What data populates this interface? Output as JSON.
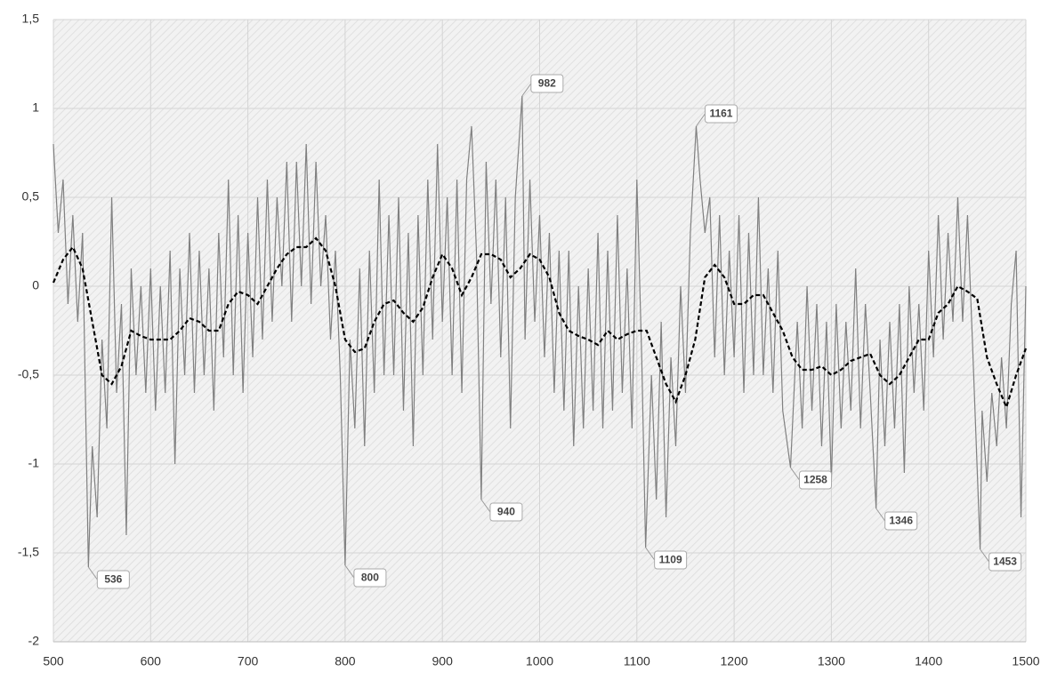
{
  "chart_data": {
    "type": "line",
    "xlim": [
      500,
      1500
    ],
    "xticks": [
      500,
      600,
      700,
      800,
      900,
      1000,
      1100,
      1200,
      1300,
      1400,
      1500
    ],
    "ylim": [
      -2,
      1.5
    ],
    "yticks": [
      -2,
      {
        "value": -1.5,
        "label": "-1,5"
      },
      -1,
      {
        "value": -0.5,
        "label": "-0,5"
      },
      0,
      {
        "value": 0.5,
        "label": "0,5"
      },
      1,
      {
        "value": 1.5,
        "label": "1,5"
      }
    ],
    "grid": true,
    "series": [
      {
        "color": "#808080",
        "style": "solid",
        "x": [
          500,
          505,
          510,
          515,
          520,
          525,
          530,
          536,
          540,
          545,
          550,
          555,
          560,
          565,
          570,
          575,
          580,
          585,
          590,
          595,
          600,
          605,
          610,
          615,
          620,
          625,
          630,
          635,
          640,
          645,
          650,
          655,
          660,
          665,
          670,
          675,
          680,
          685,
          690,
          695,
          700,
          705,
          710,
          715,
          720,
          725,
          730,
          735,
          740,
          745,
          750,
          755,
          760,
          765,
          770,
          775,
          780,
          785,
          790,
          795,
          800,
          805,
          810,
          815,
          820,
          825,
          830,
          835,
          840,
          845,
          850,
          855,
          860,
          865,
          870,
          875,
          880,
          885,
          890,
          895,
          900,
          905,
          910,
          915,
          920,
          925,
          930,
          935,
          940,
          945,
          950,
          955,
          960,
          965,
          970,
          975,
          982,
          985,
          990,
          995,
          1000,
          1005,
          1010,
          1015,
          1020,
          1025,
          1030,
          1035,
          1040,
          1045,
          1050,
          1055,
          1060,
          1065,
          1070,
          1075,
          1080,
          1085,
          1090,
          1095,
          1100,
          1105,
          1109,
          1115,
          1120,
          1125,
          1130,
          1135,
          1140,
          1145,
          1150,
          1155,
          1161,
          1165,
          1170,
          1175,
          1180,
          1185,
          1190,
          1195,
          1200,
          1205,
          1210,
          1215,
          1220,
          1225,
          1230,
          1235,
          1240,
          1245,
          1250,
          1258,
          1265,
          1270,
          1275,
          1280,
          1285,
          1290,
          1295,
          1300,
          1305,
          1310,
          1315,
          1320,
          1325,
          1330,
          1335,
          1340,
          1346,
          1350,
          1355,
          1360,
          1365,
          1370,
          1375,
          1380,
          1385,
          1390,
          1395,
          1400,
          1405,
          1410,
          1415,
          1420,
          1425,
          1430,
          1435,
          1440,
          1445,
          1453,
          1455,
          1460,
          1465,
          1470,
          1475,
          1480,
          1485,
          1490,
          1495,
          1500
        ],
        "values": [
          0.8,
          0.3,
          0.6,
          -0.1,
          0.4,
          -0.2,
          0.3,
          -1.58,
          -0.9,
          -1.3,
          -0.3,
          -0.8,
          0.5,
          -0.6,
          -0.1,
          -1.4,
          0.1,
          -0.5,
          0.0,
          -0.6,
          0.1,
          -0.7,
          0.0,
          -0.6,
          0.2,
          -1.0,
          0.1,
          -0.5,
          0.3,
          -0.6,
          0.2,
          -0.5,
          0.1,
          -0.7,
          0.3,
          -0.4,
          0.6,
          -0.5,
          0.4,
          -0.6,
          0.3,
          -0.4,
          0.5,
          -0.3,
          0.6,
          -0.2,
          0.5,
          0.0,
          0.7,
          -0.2,
          0.7,
          0.0,
          0.8,
          -0.1,
          0.7,
          0.0,
          0.4,
          -0.3,
          0.2,
          -0.5,
          -1.57,
          -0.3,
          -0.8,
          0.1,
          -0.9,
          0.2,
          -0.6,
          0.6,
          -0.5,
          0.4,
          -0.5,
          0.5,
          -0.7,
          0.3,
          -0.9,
          0.4,
          -0.5,
          0.6,
          -0.3,
          0.8,
          -0.2,
          0.5,
          -0.5,
          0.6,
          -0.6,
          0.6,
          0.9,
          0.2,
          -1.2,
          0.7,
          -0.1,
          0.6,
          -0.4,
          0.5,
          -0.8,
          0.5,
          1.07,
          -0.3,
          0.6,
          -0.2,
          0.4,
          -0.4,
          0.3,
          -0.6,
          0.2,
          -0.7,
          0.2,
          -0.9,
          0.0,
          -0.8,
          0.1,
          -0.7,
          0.3,
          -0.8,
          0.2,
          -0.7,
          0.4,
          -0.6,
          0.1,
          -0.8,
          0.6,
          -0.4,
          -1.47,
          -0.5,
          -1.2,
          -0.2,
          -1.3,
          -0.4,
          -0.9,
          0.0,
          -0.6,
          0.3,
          0.9,
          0.6,
          0.3,
          0.5,
          -0.4,
          0.4,
          -0.5,
          0.2,
          -0.4,
          0.4,
          -0.6,
          0.3,
          -0.5,
          0.5,
          -0.5,
          0.1,
          -0.6,
          0.2,
          -0.7,
          -1.02,
          -0.2,
          -0.8,
          0.0,
          -0.7,
          -0.1,
          -0.9,
          -0.2,
          -1.1,
          -0.1,
          -0.8,
          -0.2,
          -0.7,
          0.1,
          -0.8,
          -0.1,
          -0.6,
          -1.25,
          -0.3,
          -0.9,
          -0.2,
          -0.8,
          -0.1,
          -1.05,
          0.0,
          -0.6,
          -0.1,
          -0.7,
          0.2,
          -0.4,
          0.4,
          -0.3,
          0.3,
          -0.2,
          0.5,
          -0.2,
          0.4,
          -0.3,
          -1.48,
          -0.7,
          -1.1,
          -0.6,
          -0.9,
          -0.4,
          -0.8,
          -0.1,
          0.2,
          -1.3,
          0.0
        ]
      },
      {
        "color": "#000000",
        "style": "dashed",
        "x": [
          500,
          510,
          520,
          530,
          540,
          550,
          560,
          570,
          580,
          590,
          600,
          610,
          620,
          630,
          640,
          650,
          660,
          670,
          680,
          690,
          700,
          710,
          720,
          730,
          740,
          750,
          760,
          770,
          780,
          790,
          800,
          810,
          820,
          830,
          840,
          850,
          860,
          870,
          880,
          890,
          900,
          910,
          920,
          930,
          940,
          950,
          960,
          970,
          980,
          990,
          1000,
          1010,
          1020,
          1030,
          1040,
          1050,
          1060,
          1070,
          1080,
          1090,
          1100,
          1110,
          1120,
          1130,
          1140,
          1150,
          1160,
          1170,
          1180,
          1190,
          1200,
          1210,
          1220,
          1230,
          1240,
          1250,
          1260,
          1270,
          1280,
          1290,
          1300,
          1310,
          1320,
          1330,
          1340,
          1350,
          1360,
          1370,
          1380,
          1390,
          1400,
          1410,
          1420,
          1430,
          1440,
          1450,
          1460,
          1470,
          1480,
          1490,
          1500
        ],
        "values": [
          0.02,
          0.15,
          0.22,
          0.1,
          -0.2,
          -0.5,
          -0.55,
          -0.45,
          -0.25,
          -0.28,
          -0.3,
          -0.3,
          -0.3,
          -0.25,
          -0.18,
          -0.2,
          -0.25,
          -0.25,
          -0.1,
          -0.03,
          -0.05,
          -0.1,
          0.0,
          0.1,
          0.18,
          0.22,
          0.22,
          0.27,
          0.2,
          0.0,
          -0.3,
          -0.37,
          -0.35,
          -0.2,
          -0.1,
          -0.08,
          -0.15,
          -0.2,
          -0.12,
          0.05,
          0.18,
          0.1,
          -0.05,
          0.05,
          0.18,
          0.18,
          0.15,
          0.05,
          0.1,
          0.18,
          0.15,
          0.05,
          -0.15,
          -0.25,
          -0.28,
          -0.3,
          -0.33,
          -0.25,
          -0.3,
          -0.27,
          -0.25,
          -0.25,
          -0.4,
          -0.55,
          -0.65,
          -0.5,
          -0.3,
          0.05,
          0.12,
          0.05,
          -0.1,
          -0.1,
          -0.05,
          -0.05,
          -0.15,
          -0.25,
          -0.4,
          -0.47,
          -0.47,
          -0.45,
          -0.5,
          -0.47,
          -0.42,
          -0.4,
          -0.38,
          -0.5,
          -0.55,
          -0.5,
          -0.4,
          -0.3,
          -0.3,
          -0.15,
          -0.1,
          0.0,
          -0.03,
          -0.07,
          -0.4,
          -0.55,
          -0.68,
          -0.5,
          -0.35
        ]
      }
    ],
    "annotations": [
      {
        "x": 536,
        "y": -1.58
      },
      {
        "x": 800,
        "y": -1.57
      },
      {
        "x": 940,
        "y": -1.2
      },
      {
        "x": 982,
        "y": 1.07
      },
      {
        "x": 1109,
        "y": -1.47
      },
      {
        "x": 1161,
        "y": 0.9
      },
      {
        "x": 1258,
        "y": -1.02
      },
      {
        "x": 1346,
        "y": -1.25
      },
      {
        "x": 1453,
        "y": -1.48
      }
    ]
  }
}
